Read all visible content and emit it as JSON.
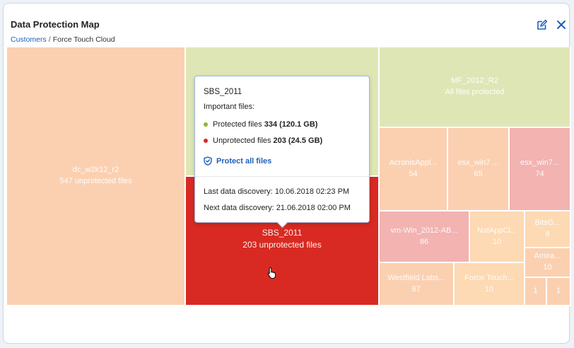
{
  "header": {
    "title": "Data Protection Map",
    "breadcrumb_link": "Customers",
    "breadcrumb_separator": "/",
    "breadcrumb_current": "Force Touch Cloud"
  },
  "treemap": {
    "cells": [
      {
        "name": "dc_w2k12_r2",
        "count": "547 unprotected files",
        "color": "#fbd0b1"
      },
      {
        "name": "",
        "count": "",
        "color": "#dfe6b6"
      },
      {
        "name": "SBS_2011",
        "count": "203 unprotected files",
        "color": "#d82a22"
      },
      {
        "name": "MF_2012_R2",
        "count": "All files protected",
        "color": "#dfe6b6"
      },
      {
        "name": "AcronisAppl...",
        "count": "54",
        "color": "#fbd0b1"
      },
      {
        "name": "esx_win7 ...",
        "count": "65",
        "color": "#fbd0b1"
      },
      {
        "name": "esx_win7...",
        "count": "74",
        "color": "#f2b3b1"
      },
      {
        "name": "vm-Win_2012-AB...",
        "count": "86",
        "color": "#f2b3b1"
      },
      {
        "name": "NatAppCl...",
        "count": "10",
        "color": "#fdd9b4"
      },
      {
        "name": "BitsG...",
        "count": "8",
        "color": "#fdd9b4"
      },
      {
        "name": "Amira...",
        "count": "10",
        "color": "#fbd0b1"
      },
      {
        "name": "Westfield Labs...",
        "count": "67",
        "color": "#fbd0b1"
      },
      {
        "name": "Force Touch...",
        "count": "10",
        "color": "#fdd9b4"
      },
      {
        "name": "",
        "count": "1",
        "color": "#fbd0b1"
      },
      {
        "name": "",
        "count": "1",
        "color": "#fbd0b1"
      }
    ]
  },
  "tooltip": {
    "name": "SBS_2011",
    "subtitle": "Important files:",
    "protected_label": "Protected files",
    "protected_count": "334",
    "protected_size": "(120.1 GB)",
    "protected_color": "#8fb72b",
    "unprotected_label": "Unprotected files",
    "unprotected_count": "203",
    "unprotected_size": "(24.5 GB)",
    "unprotected_color": "#d82a22",
    "action": "Protect all files",
    "last_discovery": "Last data discovery: 10.06.2018 02:23 PM",
    "next_discovery": "Next data discovery: 21.06.2018 02:00 PM"
  },
  "colors": {
    "accent": "#1f5fb8",
    "border": "#c9d6ea"
  }
}
